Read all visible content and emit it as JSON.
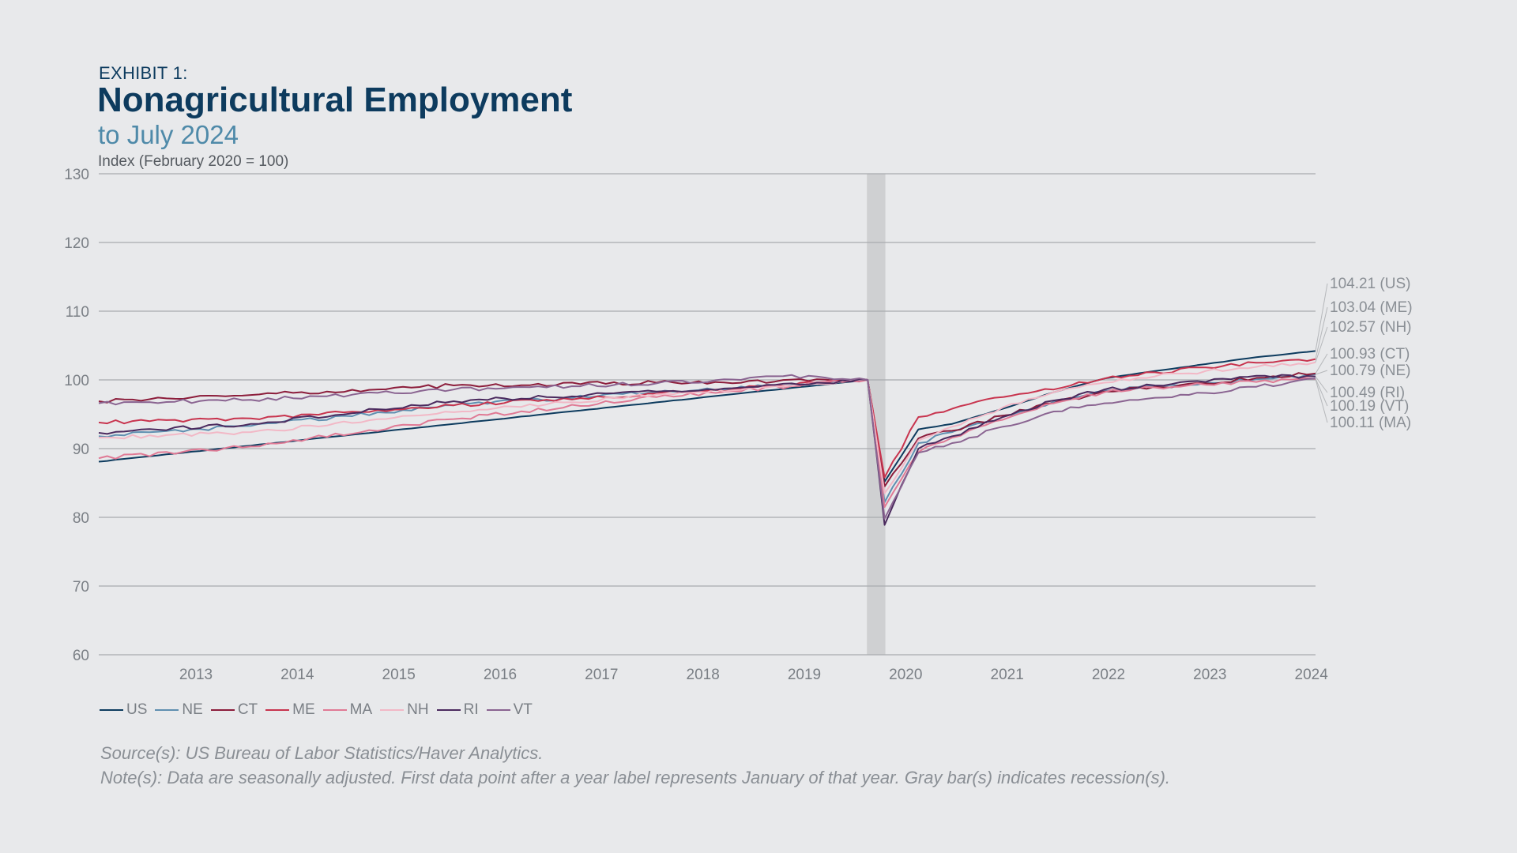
{
  "header": {
    "exhibit": "EXHIBIT 1:",
    "title": "Nonagricultural Employment",
    "subtitle": "to July 2024",
    "unit": "Index (February 2020 = 100)"
  },
  "footer": {
    "source": "Source(s): US Bureau of Labor Statistics/Haver Analytics.",
    "note": "Note(s): Data are seasonally adjusted. First data point after a year label represents January of that year. Gray bar(s) indicates recession(s)."
  },
  "chart_data": {
    "type": "line",
    "x_start": "2012-07",
    "x_end": "2024-07",
    "ylim": [
      60,
      130
    ],
    "yticks": [
      60,
      70,
      80,
      90,
      100,
      110,
      120,
      130
    ],
    "xticks": [
      "2013",
      "2014",
      "2015",
      "2016",
      "2017",
      "2018",
      "2019",
      "2020",
      "2021",
      "2022",
      "2023",
      "2024"
    ],
    "grid": true,
    "legend_position": "bottom-left",
    "recession": {
      "start": "2020-02",
      "end": "2020-04"
    },
    "series": [
      {
        "name": "US",
        "color": "#0d3b5e",
        "end_label": "104.21 (US)",
        "keyframes": [
          [
            "2012-07",
            88.1
          ],
          [
            "2020-02",
            100
          ],
          [
            "2020-04",
            85.2
          ],
          [
            "2020-08",
            92.8
          ],
          [
            "2020-12",
            93.6
          ],
          [
            "2021-06",
            95.8
          ],
          [
            "2021-12",
            98.2
          ],
          [
            "2022-06",
            100.2
          ],
          [
            "2022-12",
            101.3
          ],
          [
            "2023-06",
            102.3
          ],
          [
            "2023-12",
            103.3
          ],
          [
            "2024-07",
            104.21
          ]
        ]
      },
      {
        "name": "NE",
        "color": "#5f8fb0",
        "end_label": "100.79 (NE)",
        "keyframes": [
          [
            "2012-07",
            91.8
          ],
          [
            "2014-01",
            93.3
          ],
          [
            "2016-01",
            96.3
          ],
          [
            "2018-01",
            98.2
          ],
          [
            "2020-02",
            100
          ],
          [
            "2020-04",
            82.2
          ],
          [
            "2020-08",
            90.8
          ],
          [
            "2020-12",
            92.4
          ],
          [
            "2021-06",
            94.8
          ],
          [
            "2021-12",
            96.8
          ],
          [
            "2022-06",
            98.4
          ],
          [
            "2022-12",
            99.1
          ],
          [
            "2023-06",
            99.6
          ],
          [
            "2023-12",
            100.1
          ],
          [
            "2024-07",
            100.79
          ]
        ]
      },
      {
        "name": "CT",
        "color": "#8c1d3b",
        "end_label": "100.93 (CT)",
        "keyframes": [
          [
            "2012-07",
            96.9
          ],
          [
            "2014-01",
            97.8
          ],
          [
            "2016-01",
            99.2
          ],
          [
            "2018-01",
            99.6
          ],
          [
            "2020-02",
            100
          ],
          [
            "2020-04",
            84.5
          ],
          [
            "2020-08",
            91.5
          ],
          [
            "2020-12",
            92.6
          ],
          [
            "2021-06",
            94.8
          ],
          [
            "2021-12",
            96.6
          ],
          [
            "2022-06",
            98.3
          ],
          [
            "2022-12",
            99.0
          ],
          [
            "2023-06",
            99.5
          ],
          [
            "2023-12",
            100.3
          ],
          [
            "2024-07",
            100.93
          ]
        ]
      },
      {
        "name": "ME",
        "color": "#c8344e",
        "end_label": "103.04 (ME)",
        "keyframes": [
          [
            "2012-07",
            93.8
          ],
          [
            "2014-01",
            94.4
          ],
          [
            "2016-01",
            96.3
          ],
          [
            "2018-01",
            98.0
          ],
          [
            "2020-02",
            100
          ],
          [
            "2020-04",
            85.8
          ],
          [
            "2020-08",
            94.6
          ],
          [
            "2020-12",
            95.8
          ],
          [
            "2021-06",
            97.5
          ],
          [
            "2021-12",
            98.6
          ],
          [
            "2022-06",
            100.2
          ],
          [
            "2022-12",
            101.1
          ],
          [
            "2023-06",
            101.8
          ],
          [
            "2023-12",
            102.5
          ],
          [
            "2024-07",
            103.04
          ]
        ]
      },
      {
        "name": "MA",
        "color": "#e07a95",
        "end_label": "100.11 (MA)",
        "keyframes": [
          [
            "2012-07",
            88.6
          ],
          [
            "2014-01",
            90.3
          ],
          [
            "2016-01",
            94.3
          ],
          [
            "2018-01",
            97.5
          ],
          [
            "2020-02",
            100
          ],
          [
            "2020-04",
            81.5
          ],
          [
            "2020-08",
            89.5
          ],
          [
            "2020-12",
            91.6
          ],
          [
            "2021-06",
            94.2
          ],
          [
            "2021-12",
            96.6
          ],
          [
            "2022-06",
            98.2
          ],
          [
            "2022-12",
            98.9
          ],
          [
            "2023-06",
            99.3
          ],
          [
            "2023-12",
            99.7
          ],
          [
            "2024-07",
            100.11
          ]
        ]
      },
      {
        "name": "NH",
        "color": "#f2b8c6",
        "end_label": "102.57 (NH)",
        "keyframes": [
          [
            "2012-07",
            91.6
          ],
          [
            "2014-01",
            92.4
          ],
          [
            "2016-01",
            95.3
          ],
          [
            "2018-01",
            97.9
          ],
          [
            "2020-02",
            100
          ],
          [
            "2020-04",
            83.5
          ],
          [
            "2020-08",
            91.2
          ],
          [
            "2020-12",
            93.2
          ],
          [
            "2021-06",
            96.0
          ],
          [
            "2021-12",
            98.2
          ],
          [
            "2022-06",
            99.6
          ],
          [
            "2022-12",
            100.5
          ],
          [
            "2023-06",
            101.3
          ],
          [
            "2023-12",
            101.9
          ],
          [
            "2024-07",
            102.57
          ]
        ]
      },
      {
        "name": "RI",
        "color": "#4b2a5e",
        "end_label": "100.49 (RI)",
        "keyframes": [
          [
            "2012-07",
            92.3
          ],
          [
            "2014-01",
            93.6
          ],
          [
            "2016-01",
            96.9
          ],
          [
            "2018-01",
            98.3
          ],
          [
            "2020-02",
            100
          ],
          [
            "2020-04",
            78.9
          ],
          [
            "2020-08",
            90.0
          ],
          [
            "2020-12",
            91.8
          ],
          [
            "2021-06",
            94.6
          ],
          [
            "2021-12",
            97.0
          ],
          [
            "2022-06",
            98.6
          ],
          [
            "2022-12",
            99.2
          ],
          [
            "2023-06",
            99.7
          ],
          [
            "2023-12",
            100.6
          ],
          [
            "2024-07",
            100.49
          ]
        ]
      },
      {
        "name": "VT",
        "color": "#8a6491",
        "end_label": "100.19 (VT)",
        "keyframes": [
          [
            "2012-07",
            96.6
          ],
          [
            "2014-01",
            97.1
          ],
          [
            "2016-01",
            98.6
          ],
          [
            "2018-01",
            99.5
          ],
          [
            "2019-07",
            100.6
          ],
          [
            "2020-02",
            100
          ],
          [
            "2020-04",
            79.8
          ],
          [
            "2020-08",
            89.4
          ],
          [
            "2020-12",
            90.8
          ],
          [
            "2021-06",
            93.2
          ],
          [
            "2021-12",
            95.4
          ],
          [
            "2022-06",
            96.6
          ],
          [
            "2022-12",
            97.4
          ],
          [
            "2023-06",
            98.1
          ],
          [
            "2023-12",
            99.0
          ],
          [
            "2024-07",
            100.19
          ]
        ]
      }
    ]
  }
}
